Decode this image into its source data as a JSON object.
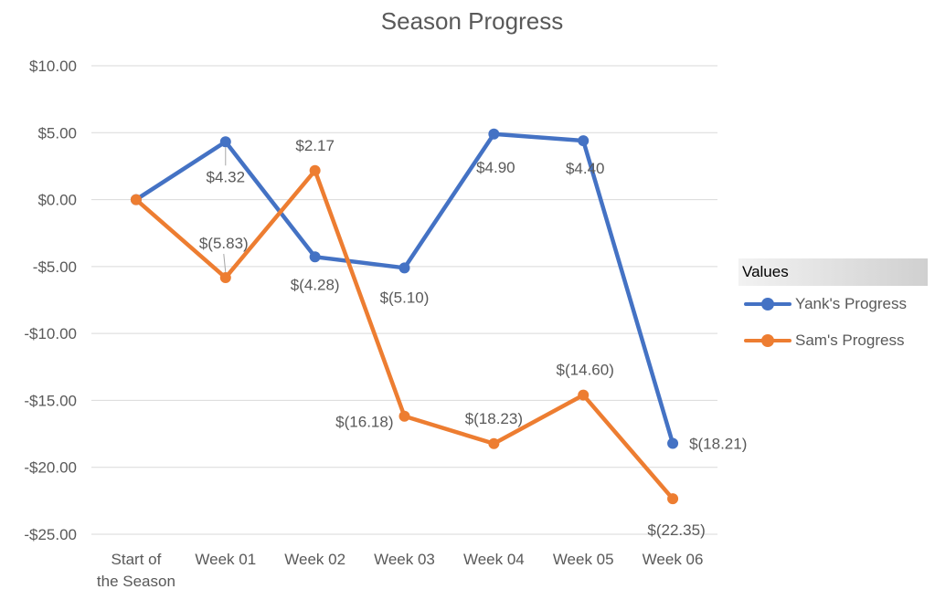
{
  "chart_data": {
    "type": "line",
    "title": "Season Progress",
    "xlabel": "",
    "ylabel": "",
    "categories": [
      "Start of the Season",
      "Week 01",
      "Week 02",
      "Week 03",
      "Week 04",
      "Week 05",
      "Week 06"
    ],
    "category_lines": [
      [
        "Start of",
        "the Season"
      ],
      [
        "Week 01"
      ],
      [
        "Week 02"
      ],
      [
        "Week 03"
      ],
      [
        "Week 04"
      ],
      [
        "Week 05"
      ],
      [
        "Week 06"
      ]
    ],
    "ylim": [
      -25,
      10
    ],
    "yticks": [
      10,
      5,
      0,
      -5,
      -10,
      -15,
      -20,
      -25
    ],
    "ytick_labels": [
      "$10.00",
      "$5.00",
      "$0.00",
      "-$5.00",
      "-$10.00",
      "-$15.00",
      "-$20.00",
      "-$25.00"
    ],
    "grid": true,
    "legend_title": "Values",
    "legend_position": "right",
    "series": [
      {
        "name": "Yank's Progress",
        "color": "#4472C4",
        "values": [
          0,
          4.32,
          -4.28,
          -5.1,
          4.9,
          4.4,
          -18.21
        ],
        "labels": [
          "",
          "$4.32",
          "$(4.28)",
          "$(5.10)",
          "$4.90",
          "$4.40",
          "$(18.21)"
        ]
      },
      {
        "name": "Sam's Progress",
        "color": "#ED7D31",
        "values": [
          0,
          -5.83,
          2.17,
          -16.18,
          -18.23,
          -14.6,
          -22.35
        ],
        "labels": [
          "",
          "$(5.83)",
          "$2.17",
          "$(16.18)",
          "$(18.23)",
          "$(14.60)",
          "$(22.35)"
        ]
      }
    ]
  }
}
